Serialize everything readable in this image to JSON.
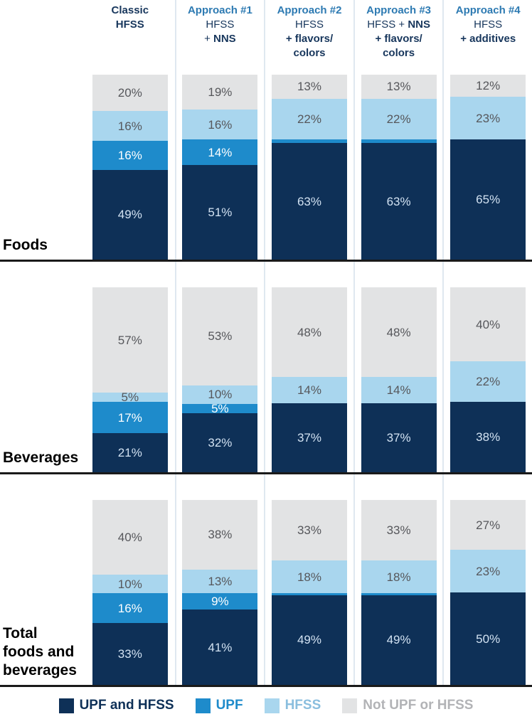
{
  "chart_data": {
    "type": "bar",
    "stacked": true,
    "value_unit": "%",
    "legend_position": "bottom",
    "series_bottom_to_top": [
      "UPF and HFSS",
      "UPF",
      "HFSS",
      "Not UPF or HFSS"
    ],
    "series_colors": {
      "UPF and HFSS": "#0e3057",
      "UPF": "#1e8bcb",
      "HFSS": "#a9d6ee",
      "Not UPF or HFSS": "#e2e3e4"
    },
    "label_colors": {
      "UPF and HFSS": "#d2e2f2",
      "UPF": "#ffffff",
      "HFSS": "#56575b",
      "Not UPF or HFSS": "#56575b"
    },
    "columns": [
      {
        "name": "Classic HFSS",
        "lines": [
          {
            "c": "navy",
            "parts": [
              {
                "t": "Classic",
                "b": true
              }
            ]
          },
          {
            "c": "navy",
            "parts": [
              {
                "t": "HFSS",
                "b": true
              }
            ]
          }
        ]
      },
      {
        "name": "Approach #1",
        "lines": [
          {
            "c": "blue",
            "parts": [
              {
                "t": "Approach #1",
                "b": true
              }
            ]
          },
          {
            "c": "navy",
            "parts": [
              {
                "t": "HFSS",
                "b": false
              }
            ]
          },
          {
            "c": "navy",
            "parts": [
              {
                "t": "+ ",
                "b": false
              },
              {
                "t": "NNS",
                "b": true
              }
            ]
          }
        ]
      },
      {
        "name": "Approach #2",
        "lines": [
          {
            "c": "blue",
            "parts": [
              {
                "t": "Approach #2",
                "b": true
              }
            ]
          },
          {
            "c": "navy",
            "parts": [
              {
                "t": "HFSS",
                "b": false
              }
            ]
          },
          {
            "c": "navy",
            "parts": [
              {
                "t": "+ flavors/",
                "b": true
              }
            ]
          },
          {
            "c": "navy",
            "parts": [
              {
                "t": "colors",
                "b": true
              }
            ]
          }
        ]
      },
      {
        "name": "Approach #3",
        "lines": [
          {
            "c": "blue",
            "parts": [
              {
                "t": "Approach #3",
                "b": true
              }
            ]
          },
          {
            "c": "navy",
            "parts": [
              {
                "t": "HFSS + ",
                "b": false
              },
              {
                "t": "NNS",
                "b": true
              }
            ]
          },
          {
            "c": "navy",
            "parts": [
              {
                "t": "+ flavors/",
                "b": true
              }
            ]
          },
          {
            "c": "navy",
            "parts": [
              {
                "t": "colors",
                "b": true
              }
            ]
          }
        ]
      },
      {
        "name": "Approach #4",
        "lines": [
          {
            "c": "blue",
            "parts": [
              {
                "t": "Approach #4",
                "b": true
              }
            ]
          },
          {
            "c": "navy",
            "parts": [
              {
                "t": "HFSS",
                "b": false
              }
            ]
          },
          {
            "c": "navy",
            "parts": [
              {
                "t": "+ additives",
                "b": true
              }
            ]
          }
        ]
      }
    ],
    "rows": [
      {
        "label_lines": [
          "Foods"
        ],
        "bars": [
          {
            "segments": [
              {
                "series": "UPF and HFSS",
                "value": 49,
                "label": "49%"
              },
              {
                "series": "UPF",
                "value": 16,
                "label": "16%"
              },
              {
                "series": "HFSS",
                "value": 16,
                "label": "16%"
              },
              {
                "series": "Not UPF or HFSS",
                "value": 20,
                "label": "20%"
              }
            ]
          },
          {
            "segments": [
              {
                "series": "UPF and HFSS",
                "value": 51,
                "label": "51%"
              },
              {
                "series": "UPF",
                "value": 14,
                "label": "14%"
              },
              {
                "series": "HFSS",
                "value": 16,
                "label": "16%"
              },
              {
                "series": "Not UPF or HFSS",
                "value": 19,
                "label": "19%"
              }
            ]
          },
          {
            "segments": [
              {
                "series": "UPF and HFSS",
                "value": 63,
                "label": "63%"
              },
              {
                "series": "UPF",
                "value": 2,
                "label": ""
              },
              {
                "series": "HFSS",
                "value": 22,
                "label": "22%"
              },
              {
                "series": "Not UPF or HFSS",
                "value": 13,
                "label": "13%"
              }
            ]
          },
          {
            "segments": [
              {
                "series": "UPF and HFSS",
                "value": 63,
                "label": "63%"
              },
              {
                "series": "UPF",
                "value": 2,
                "label": ""
              },
              {
                "series": "HFSS",
                "value": 22,
                "label": "22%"
              },
              {
                "series": "Not UPF or HFSS",
                "value": 13,
                "label": "13%"
              }
            ]
          },
          {
            "segments": [
              {
                "series": "UPF and HFSS",
                "value": 65,
                "label": "65%"
              },
              {
                "series": "UPF",
                "value": 0,
                "label": ""
              },
              {
                "series": "HFSS",
                "value": 23,
                "label": "23%"
              },
              {
                "series": "Not UPF or HFSS",
                "value": 12,
                "label": "12%"
              }
            ]
          }
        ]
      },
      {
        "label_lines": [
          "Beverages"
        ],
        "bars": [
          {
            "segments": [
              {
                "series": "UPF and HFSS",
                "value": 21,
                "label": "21%"
              },
              {
                "series": "UPF",
                "value": 17,
                "label": "17%"
              },
              {
                "series": "HFSS",
                "value": 5,
                "label": "5%"
              },
              {
                "series": "Not UPF or HFSS",
                "value": 57,
                "label": "57%"
              }
            ]
          },
          {
            "segments": [
              {
                "series": "UPF and HFSS",
                "value": 32,
                "label": "32%"
              },
              {
                "series": "UPF",
                "value": 5,
                "label": "5%"
              },
              {
                "series": "HFSS",
                "value": 10,
                "label": "10%"
              },
              {
                "series": "Not UPF or HFSS",
                "value": 53,
                "label": "53%"
              }
            ]
          },
          {
            "segments": [
              {
                "series": "UPF and HFSS",
                "value": 37,
                "label": "37%"
              },
              {
                "series": "UPF",
                "value": 0,
                "label": ""
              },
              {
                "series": "HFSS",
                "value": 14,
                "label": "14%"
              },
              {
                "series": "Not UPF or HFSS",
                "value": 48,
                "label": "48%"
              }
            ]
          },
          {
            "segments": [
              {
                "series": "UPF and HFSS",
                "value": 37,
                "label": "37%"
              },
              {
                "series": "UPF",
                "value": 0,
                "label": ""
              },
              {
                "series": "HFSS",
                "value": 14,
                "label": "14%"
              },
              {
                "series": "Not UPF or HFSS",
                "value": 48,
                "label": "48%"
              }
            ]
          },
          {
            "segments": [
              {
                "series": "UPF and HFSS",
                "value": 38,
                "label": "38%"
              },
              {
                "series": "UPF",
                "value": 0,
                "label": ""
              },
              {
                "series": "HFSS",
                "value": 22,
                "label": "22%"
              },
              {
                "series": "Not UPF or HFSS",
                "value": 40,
                "label": "40%"
              }
            ]
          }
        ]
      },
      {
        "label_lines": [
          "Total",
          "foods and",
          "beverages"
        ],
        "bars": [
          {
            "segments": [
              {
                "series": "UPF and HFSS",
                "value": 33,
                "label": "33%"
              },
              {
                "series": "UPF",
                "value": 16,
                "label": "16%"
              },
              {
                "series": "HFSS",
                "value": 10,
                "label": "10%"
              },
              {
                "series": "Not UPF or HFSS",
                "value": 40,
                "label": "40%"
              }
            ]
          },
          {
            "segments": [
              {
                "series": "UPF and HFSS",
                "value": 41,
                "label": "41%"
              },
              {
                "series": "UPF",
                "value": 9,
                "label": "9%"
              },
              {
                "series": "HFSS",
                "value": 13,
                "label": "13%"
              },
              {
                "series": "Not UPF or HFSS",
                "value": 38,
                "label": "38%"
              }
            ]
          },
          {
            "segments": [
              {
                "series": "UPF and HFSS",
                "value": 49,
                "label": "49%"
              },
              {
                "series": "UPF",
                "value": 1,
                "label": ""
              },
              {
                "series": "HFSS",
                "value": 18,
                "label": "18%"
              },
              {
                "series": "Not UPF or HFSS",
                "value": 33,
                "label": "33%"
              }
            ]
          },
          {
            "segments": [
              {
                "series": "UPF and HFSS",
                "value": 49,
                "label": "49%"
              },
              {
                "series": "UPF",
                "value": 1,
                "label": ""
              },
              {
                "series": "HFSS",
                "value": 18,
                "label": "18%"
              },
              {
                "series": "Not UPF or HFSS",
                "value": 33,
                "label": "33%"
              }
            ]
          },
          {
            "segments": [
              {
                "series": "UPF and HFSS",
                "value": 50,
                "label": "50%"
              },
              {
                "series": "UPF",
                "value": 0,
                "label": ""
              },
              {
                "series": "HFSS",
                "value": 23,
                "label": "23%"
              },
              {
                "series": "Not UPF or HFSS",
                "value": 27,
                "label": "27%"
              }
            ]
          }
        ]
      }
    ],
    "legend": [
      {
        "label": "UPF and HFSS",
        "swatch": "#0e3057",
        "text_color": "#0e3057"
      },
      {
        "label": "UPF",
        "swatch": "#1e8bcb",
        "text_color": "#1e8bcb"
      },
      {
        "label": "HFSS",
        "swatch": "#a9d6ee",
        "text_color": "#8abede"
      },
      {
        "label": "Not UPF or HFSS",
        "swatch": "#e2e3e4",
        "text_color": "#b2b3b6"
      }
    ]
  }
}
